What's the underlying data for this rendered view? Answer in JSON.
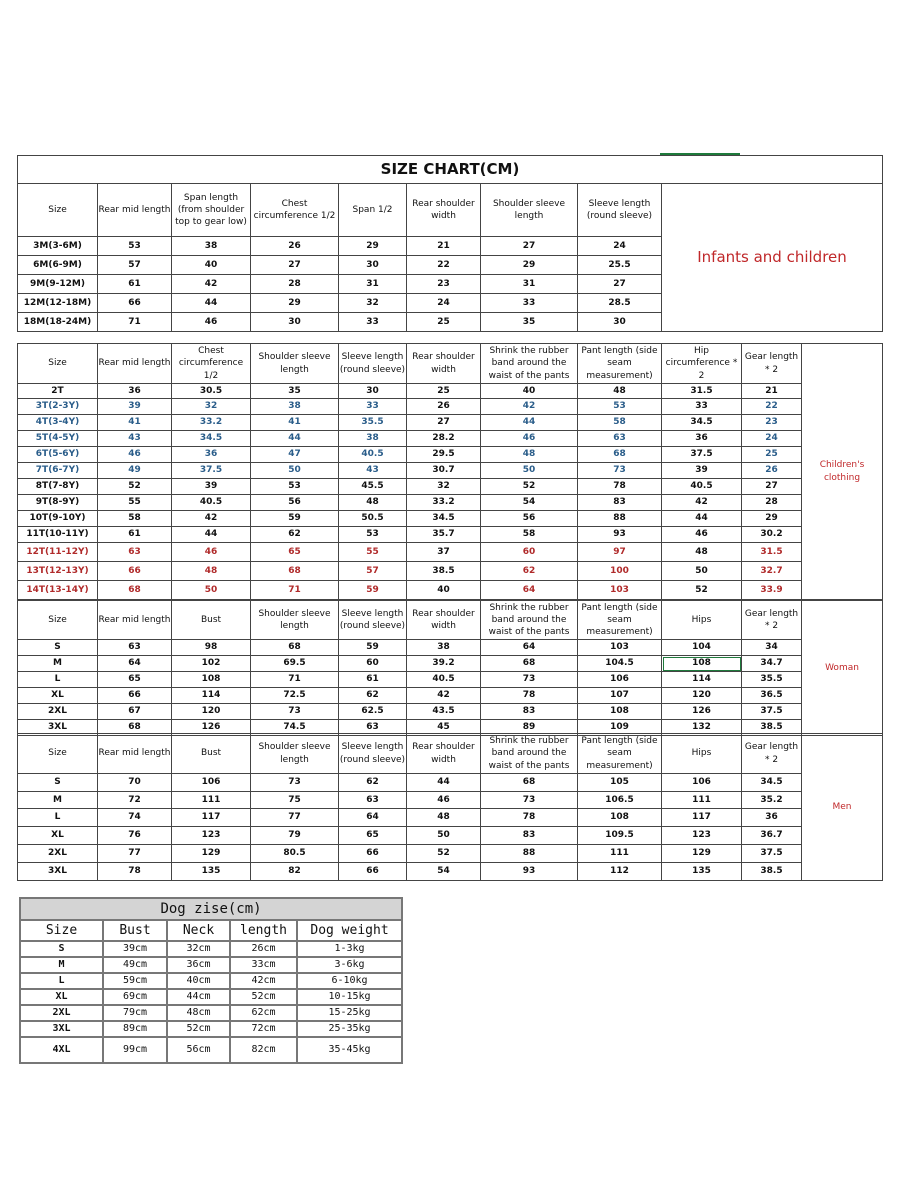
{
  "chart1": {
    "title": "SIZE CHART(CM)",
    "category": "Infants and children",
    "headers": [
      "Size",
      "Rear mid length",
      "Span length (from shoulder top to gear low)",
      "Chest circumference 1/2",
      "Span 1/2",
      "Rear shoulder width",
      "Shoulder sleeve length",
      "Sleeve length (round sleeve)"
    ],
    "rows": [
      [
        "3M(3-6M)",
        "53",
        "38",
        "26",
        "29",
        "21",
        "27",
        "24"
      ],
      [
        "6M(6-9M)",
        "57",
        "40",
        "27",
        "30",
        "22",
        "29",
        "25.5"
      ],
      [
        "9M(9-12M)",
        "61",
        "42",
        "28",
        "31",
        "23",
        "31",
        "27"
      ],
      [
        "12M(12-18M)",
        "66",
        "44",
        "29",
        "32",
        "24",
        "33",
        "28.5"
      ],
      [
        "18M(18-24M)",
        "71",
        "46",
        "30",
        "33",
        "25",
        "35",
        "30"
      ]
    ]
  },
  "chart2": {
    "category": "Children's clothing",
    "headers": [
      "Size",
      "Rear mid length",
      "Chest circumference 1/2",
      "Shoulder sleeve length",
      "Sleeve length (round sleeve)",
      "Rear shoulder width",
      "Shrink the rubber band around the waist of the pants",
      "Pant length (side seam measurement)",
      "Hip circumference * 2",
      "Gear length * 2"
    ],
    "rows": [
      {
        "tone": "black",
        "cells": [
          "2T",
          "36",
          "30.5",
          "35",
          "30",
          "25",
          "40",
          "48",
          "31.5",
          "21"
        ]
      },
      {
        "tone": "blue",
        "cells": [
          "3T(2-3Y)",
          "39",
          "32",
          "38",
          "33",
          "26",
          "42",
          "53",
          "33",
          "22"
        ]
      },
      {
        "tone": "blue",
        "cells": [
          "4T(3-4Y)",
          "41",
          "33.2",
          "41",
          "35.5",
          "27",
          "44",
          "58",
          "34.5",
          "23"
        ]
      },
      {
        "tone": "blue",
        "cells": [
          "5T(4-5Y)",
          "43",
          "34.5",
          "44",
          "38",
          "28.2",
          "46",
          "63",
          "36",
          "24"
        ]
      },
      {
        "tone": "blue",
        "cells": [
          "6T(5-6Y)",
          "46",
          "36",
          "47",
          "40.5",
          "29.5",
          "48",
          "68",
          "37.5",
          "25"
        ]
      },
      {
        "tone": "blue",
        "cells": [
          "7T(6-7Y)",
          "49",
          "37.5",
          "50",
          "43",
          "30.7",
          "50",
          "73",
          "39",
          "26"
        ]
      },
      {
        "tone": "black",
        "cells": [
          "8T(7-8Y)",
          "52",
          "39",
          "53",
          "45.5",
          "32",
          "52",
          "78",
          "40.5",
          "27"
        ]
      },
      {
        "tone": "black",
        "cells": [
          "9T(8-9Y)",
          "55",
          "40.5",
          "56",
          "48",
          "33.2",
          "54",
          "83",
          "42",
          "28"
        ]
      },
      {
        "tone": "black",
        "cells": [
          "10T(9-10Y)",
          "58",
          "42",
          "59",
          "50.5",
          "34.5",
          "56",
          "88",
          "44",
          "29"
        ]
      },
      {
        "tone": "black",
        "cells": [
          "11T(10-11Y)",
          "61",
          "44",
          "62",
          "53",
          "35.7",
          "58",
          "93",
          "46",
          "30.2"
        ]
      },
      {
        "tone": "red",
        "cells": [
          "12T(11-12Y)",
          "63",
          "46",
          "65",
          "55",
          "37",
          "60",
          "97",
          "48",
          "31.5"
        ]
      },
      {
        "tone": "red",
        "cells": [
          "13T(12-13Y)",
          "66",
          "48",
          "68",
          "57",
          "38.5",
          "62",
          "100",
          "50",
          "32.7"
        ]
      },
      {
        "tone": "red",
        "cells": [
          "14T(13-14Y)",
          "68",
          "50",
          "71",
          "59",
          "40",
          "64",
          "103",
          "52",
          "33.9"
        ]
      }
    ]
  },
  "chart3": {
    "category": "Woman",
    "headers": [
      "Size",
      "Rear mid length",
      "Bust",
      "Shoulder sleeve length",
      "Sleeve length (round sleeve)",
      "Rear shoulder width",
      "Shrink the rubber band around the waist of the pants",
      "Pant length (side seam measurement)",
      "Hips",
      "Gear length * 2"
    ],
    "rows": [
      {
        "tone": "black",
        "cells": [
          "S",
          "63",
          "98",
          "68",
          "59",
          "38",
          "64",
          "103",
          "104",
          "34"
        ]
      },
      {
        "tone": "black",
        "cells": [
          "M",
          "64",
          "102",
          "69.5",
          "60",
          "39.2",
          "68",
          "104.5",
          "108",
          "34.7"
        ]
      },
      {
        "tone": "black",
        "cells": [
          "L",
          "65",
          "108",
          "71",
          "61",
          "40.5",
          "73",
          "106",
          "114",
          "35.5"
        ]
      },
      {
        "tone": "black",
        "cells": [
          "XL",
          "66",
          "114",
          "72.5",
          "62",
          "42",
          "78",
          "107",
          "120",
          "36.5"
        ]
      },
      {
        "tone": "black",
        "cells": [
          "2XL",
          "67",
          "120",
          "73",
          "62.5",
          "43.5",
          "83",
          "108",
          "126",
          "37.5"
        ]
      },
      {
        "tone": "black",
        "cells": [
          "3XL",
          "68",
          "126",
          "74.5",
          "63",
          "45",
          "89",
          "109",
          "132",
          "38.5"
        ]
      }
    ]
  },
  "chart4": {
    "category": "Men",
    "headers": [
      "Size",
      "Rear mid length",
      "Bust",
      "Shoulder sleeve length",
      "Sleeve length (round sleeve)",
      "Rear shoulder width",
      "Shrink the rubber band around the waist of the pants",
      "Pant length (side seam measurement)",
      "Hips",
      "Gear length * 2"
    ],
    "rows": [
      {
        "tone": "black",
        "cells": [
          "S",
          "70",
          "106",
          "73",
          "62",
          "44",
          "68",
          "105",
          "106",
          "34.5"
        ]
      },
      {
        "tone": "black",
        "cells": [
          "M",
          "72",
          "111",
          "75",
          "63",
          "46",
          "73",
          "106.5",
          "111",
          "35.2"
        ]
      },
      {
        "tone": "black",
        "cells": [
          "L",
          "74",
          "117",
          "77",
          "64",
          "48",
          "78",
          "108",
          "117",
          "36"
        ]
      },
      {
        "tone": "black",
        "cells": [
          "XL",
          "76",
          "123",
          "79",
          "65",
          "50",
          "83",
          "109.5",
          "123",
          "36.7"
        ]
      },
      {
        "tone": "black",
        "cells": [
          "2XL",
          "77",
          "129",
          "80.5",
          "66",
          "52",
          "88",
          "111",
          "129",
          "37.5"
        ]
      },
      {
        "tone": "black",
        "cells": [
          "3XL",
          "78",
          "135",
          "82",
          "66",
          "54",
          "93",
          "112",
          "135",
          "38.5"
        ]
      }
    ]
  },
  "dog": {
    "title": "Dog zise(cm)",
    "headers": [
      "Size",
      "Bust",
      "Neck",
      "length",
      "Dog weight"
    ],
    "rows": [
      [
        "S",
        "39cm",
        "32cm",
        "26cm",
        "1-3kg"
      ],
      [
        "M",
        "49cm",
        "36cm",
        "33cm",
        "3-6kg"
      ],
      [
        "L",
        "59cm",
        "40cm",
        "42cm",
        "6-10kg"
      ],
      [
        "XL",
        "69cm",
        "44cm",
        "52cm",
        "10-15kg"
      ],
      [
        "2XL",
        "79cm",
        "48cm",
        "62cm",
        "15-25kg"
      ],
      [
        "3XL",
        "89cm",
        "52cm",
        "72cm",
        "25-35kg"
      ],
      [
        "4XL",
        "99cm",
        "56cm",
        "82cm",
        "35-45kg"
      ]
    ]
  },
  "colors": {
    "blue_text": "#2a5d8a",
    "red_text": "#b02a2a",
    "category_label": "#c0282a",
    "dog_title_bg": "#d4d4d4"
  }
}
